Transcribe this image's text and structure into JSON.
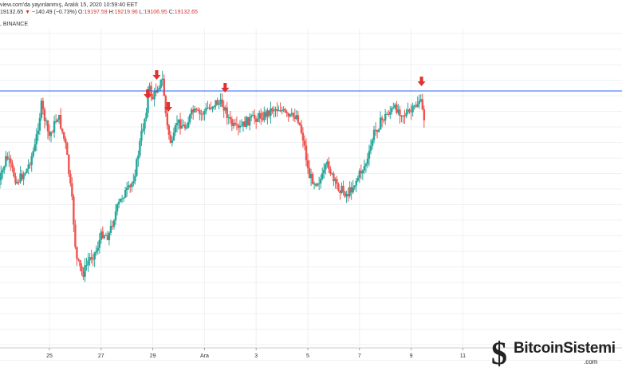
{
  "header": {
    "published": "view.com'da yayınlanmış, Aralık 15, 2020 10:59:40 EET",
    "last_price": "19132.65",
    "change_arrow": "▼",
    "change": "−140.49 (−0.73%)",
    "o_label": "O:",
    "o_value": "19197.59",
    "h_label": "H:",
    "h_value": "19219.96",
    "l_label": "L:",
    "l_value": "19106.95",
    "c_label": "C:",
    "c_value": "19132.65",
    "exchange": ", BINANCE"
  },
  "logo": {
    "name": "BitcoinSistemi",
    "suffix": ".com",
    "icon": "bitcoin-s-icon"
  },
  "colors": {
    "up": "#26a69a",
    "down": "#ef5350",
    "resistance_line": "#2962ff",
    "marker_arrow": "#e0322d",
    "grid": "#eef0f3"
  },
  "chart_data": {
    "type": "candlestick",
    "x_tick_labels": [
      "25",
      "27",
      "29",
      "Ara",
      "3",
      "5",
      "7",
      "9",
      "11"
    ],
    "horizontal_line": 0.195,
    "marker_x_ticks": [
      5.8,
      6.15,
      6.6,
      8.8,
      16.4
    ],
    "path": [
      [
        0,
        0.52
      ],
      [
        0.4,
        0.4
      ],
      [
        0.8,
        0.48
      ],
      [
        1.2,
        0.44
      ],
      [
        1.5,
        0.37
      ],
      [
        1.75,
        0.24
      ],
      [
        2.05,
        0.34
      ],
      [
        2.4,
        0.27
      ],
      [
        2.7,
        0.37
      ],
      [
        2.95,
        0.55
      ],
      [
        3.1,
        0.72
      ],
      [
        3.35,
        0.77
      ],
      [
        3.6,
        0.72
      ],
      [
        3.85,
        0.7
      ],
      [
        4.1,
        0.64
      ],
      [
        4.35,
        0.65
      ],
      [
        4.6,
        0.58
      ],
      [
        4.9,
        0.52
      ],
      [
        5.2,
        0.5
      ],
      [
        5.4,
        0.44
      ],
      [
        5.6,
        0.34
      ],
      [
        5.8,
        0.26
      ],
      [
        5.9,
        0.18
      ],
      [
        6.05,
        0.22
      ],
      [
        6.25,
        0.18
      ],
      [
        6.45,
        0.16
      ],
      [
        6.6,
        0.3
      ],
      [
        6.8,
        0.37
      ],
      [
        7.0,
        0.29
      ],
      [
        7.3,
        0.31
      ],
      [
        7.6,
        0.26
      ],
      [
        7.9,
        0.27
      ],
      [
        8.2,
        0.25
      ],
      [
        8.5,
        0.23
      ],
      [
        8.8,
        0.24
      ],
      [
        9.1,
        0.3
      ],
      [
        9.35,
        0.32
      ],
      [
        9.7,
        0.29
      ],
      [
        10.0,
        0.28
      ],
      [
        10.4,
        0.27
      ],
      [
        10.7,
        0.25
      ],
      [
        11.0,
        0.25
      ],
      [
        11.3,
        0.28
      ],
      [
        11.65,
        0.27
      ],
      [
        11.9,
        0.35
      ],
      [
        12.1,
        0.46
      ],
      [
        12.35,
        0.48
      ],
      [
        12.6,
        0.47
      ],
      [
        12.85,
        0.42
      ],
      [
        13.05,
        0.48
      ],
      [
        13.3,
        0.5
      ],
      [
        13.6,
        0.52
      ],
      [
        13.9,
        0.48
      ],
      [
        14.1,
        0.45
      ],
      [
        14.4,
        0.41
      ],
      [
        14.6,
        0.33
      ],
      [
        14.9,
        0.29
      ],
      [
        15.2,
        0.26
      ],
      [
        15.5,
        0.25
      ],
      [
        15.8,
        0.27
      ],
      [
        16.1,
        0.26
      ],
      [
        16.4,
        0.22
      ],
      [
        16.55,
        0.28
      ]
    ]
  }
}
